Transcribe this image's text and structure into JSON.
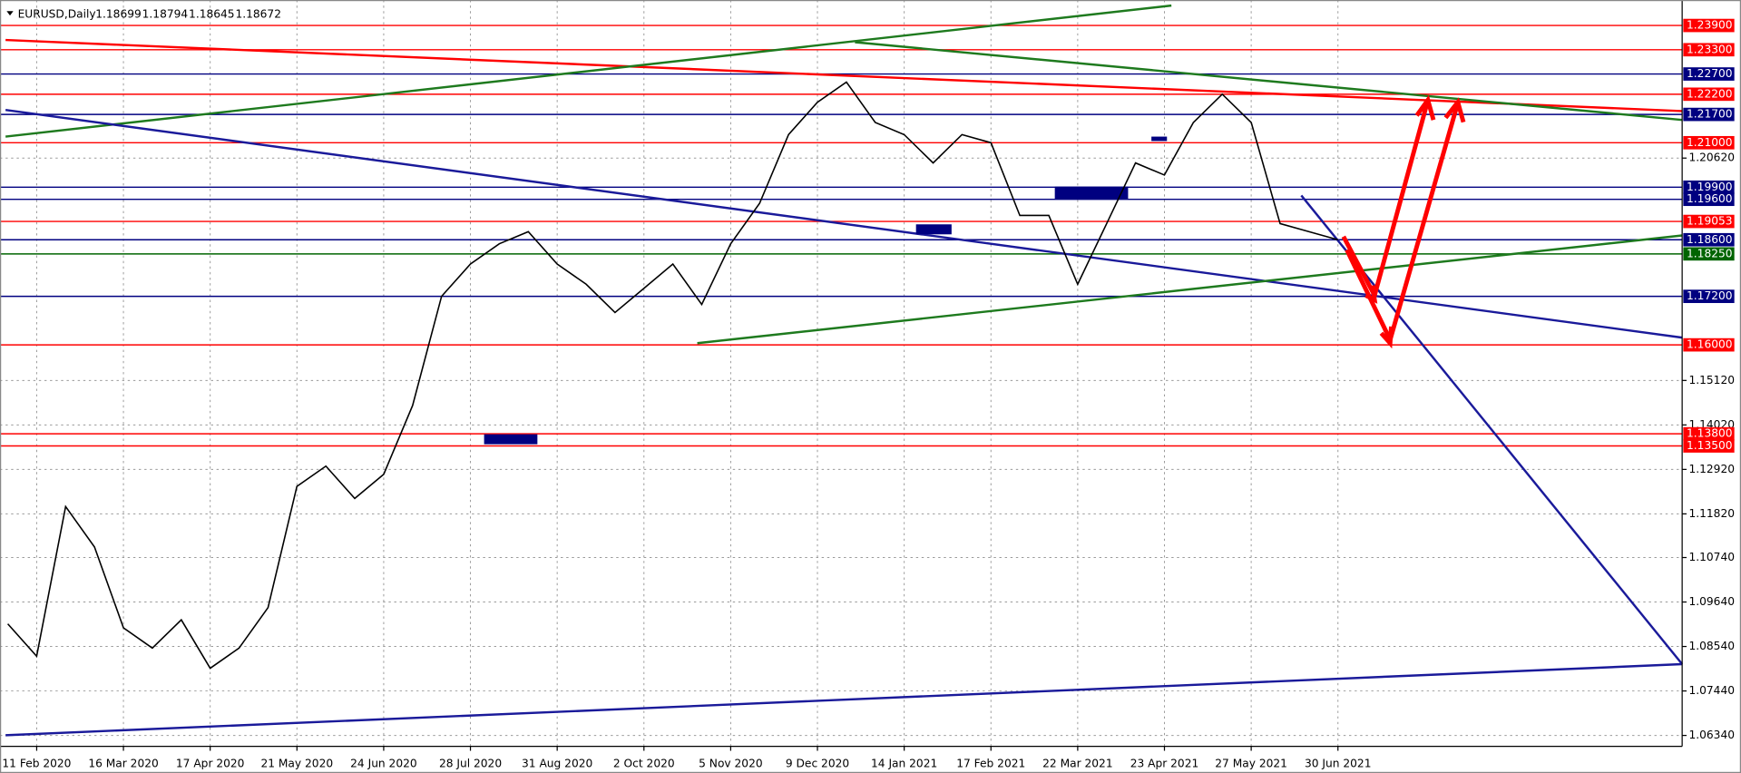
{
  "chart_data": {
    "type": "line",
    "symbol": "EURUSD,Daily",
    "ohlc": [
      1.18699,
      1.18794,
      1.18645,
      1.18672
    ],
    "categories": [
      null,
      "11 Feb 2020",
      null,
      null,
      "16 Mar 2020",
      null,
      null,
      "17 Apr 2020",
      null,
      null,
      "21 May 2020",
      null,
      null,
      "24 Jun 2020",
      null,
      null,
      "28 Jul 2020",
      null,
      null,
      "31 Aug 2020",
      null,
      null,
      "2 Oct 2020",
      null,
      null,
      "5 Nov 2020",
      null,
      null,
      "9 Dec 2020",
      null,
      null,
      "14 Jan 2021",
      null,
      null,
      "17 Feb 2021",
      null,
      null,
      "22 Mar 2021",
      null,
      null,
      "23 Apr 2021",
      null,
      null,
      "27 May 2021",
      null,
      null,
      "30 Jun 2021"
    ],
    "series": [
      {
        "color": "#000000",
        "values": [
          1.091,
          1.083,
          1.12,
          1.11,
          1.09,
          1.085,
          1.092,
          1.08,
          1.085,
          1.095,
          1.125,
          1.13,
          1.122,
          1.128,
          1.145,
          1.172,
          1.18,
          1.185,
          1.188,
          1.18,
          1.175,
          1.168,
          1.174,
          1.18,
          1.17,
          1.185,
          1.195,
          1.212,
          1.22,
          1.225,
          1.215,
          1.212,
          1.205,
          1.212,
          1.21,
          1.192,
          1.192,
          1.175,
          1.19,
          1.205,
          1.202,
          1.215,
          1.222,
          1.215,
          1.19,
          1.188,
          1.186
        ]
      }
    ],
    "ylim": [
      1.0607,
      1.2453
    ],
    "yticks": [
      {
        "value": 1.0634,
        "label": "1.06340"
      },
      {
        "value": 1.0744,
        "label": "1.07440"
      },
      {
        "value": 1.0854,
        "label": "1.08540"
      },
      {
        "value": 1.0964,
        "label": "1.09640"
      },
      {
        "value": 1.1074,
        "label": "1.10740"
      },
      {
        "value": 1.1182,
        "label": "1.11820"
      },
      {
        "value": 1.1292,
        "label": "1.12920"
      },
      {
        "value": 1.1402,
        "label": "1.14020"
      },
      {
        "value": 1.1512,
        "label": "1.15120"
      },
      {
        "value": 1.2062,
        "label": "1.20620"
      }
    ],
    "levels": [
      {
        "value": 1.239,
        "label": "1.23900",
        "color": "#ff0000"
      },
      {
        "value": 1.233,
        "label": "1.23300",
        "color": "#ff0000"
      },
      {
        "value": 1.227,
        "label": "1.22700",
        "color": "#000080"
      },
      {
        "value": 1.222,
        "label": "1.22200",
        "color": "#ff0000"
      },
      {
        "value": 1.217,
        "label": "1.21700",
        "color": "#000080"
      },
      {
        "value": 1.21,
        "label": "1.21000",
        "color": "#ff0000"
      },
      {
        "value": 1.199,
        "label": "1.19900",
        "color": "#000080"
      },
      {
        "value": 1.196,
        "label": "1.19600",
        "color": "#000080"
      },
      {
        "value": 1.19053,
        "label": "1.19053",
        "color": "#ff0000"
      },
      {
        "value": 1.186,
        "label": "1.18600",
        "color": "#000080"
      },
      {
        "value": 1.1825,
        "label": "1.18250",
        "color": "#006400"
      },
      {
        "value": 1.172,
        "label": "1.17200",
        "color": "#000080"
      },
      {
        "value": 1.16,
        "label": "1.16000",
        "color": "#ff0000"
      },
      {
        "value": 1.138,
        "label": "1.13800",
        "color": "#ff0000"
      },
      {
        "value": 1.135,
        "label": "1.13500",
        "color": "#ff0000"
      }
    ],
    "grid": true
  }
}
